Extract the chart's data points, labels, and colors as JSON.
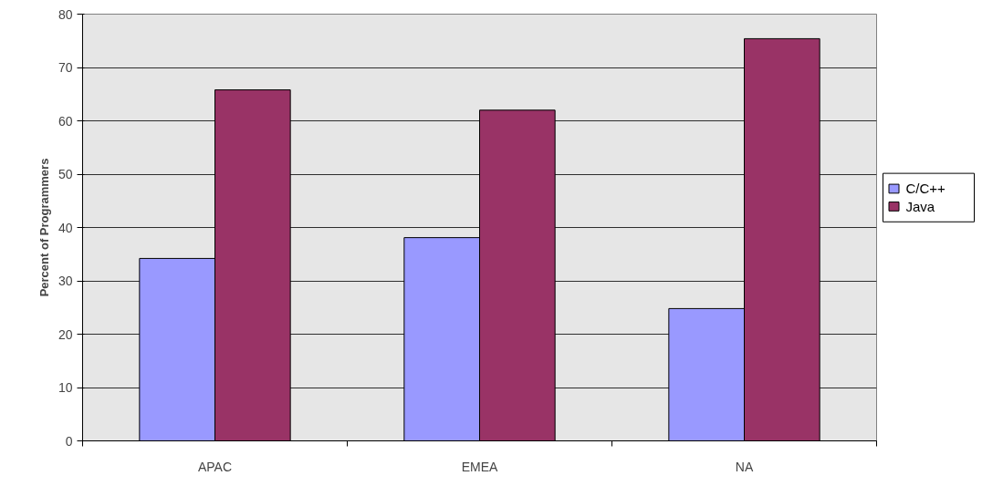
{
  "chart_data": {
    "type": "bar",
    "ylabel": "Percent of Programmers",
    "categories": [
      "APAC",
      "EMEA",
      "NA"
    ],
    "series": [
      {
        "name": "C/C++",
        "color": "#9999ff",
        "values": [
          34.2,
          38.1,
          24.8
        ]
      },
      {
        "name": "Java",
        "color": "#993366",
        "values": [
          65.8,
          62.0,
          75.4
        ]
      }
    ],
    "ylim": [
      0,
      80
    ],
    "yticks": [
      0,
      10,
      20,
      30,
      40,
      50,
      60,
      70,
      80
    ],
    "grid": "y",
    "legend": "right"
  }
}
